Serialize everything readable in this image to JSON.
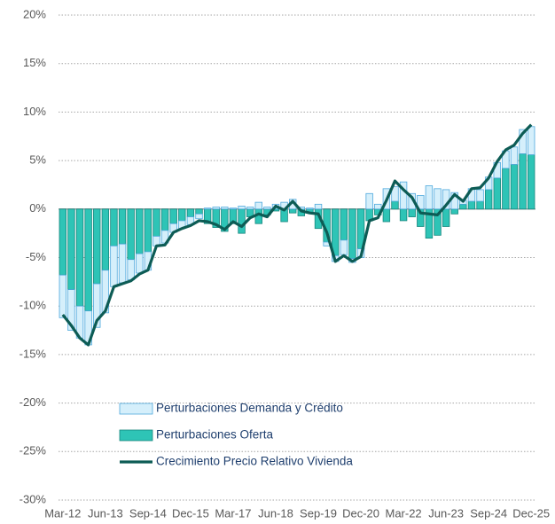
{
  "chart_data": {
    "type": "stacked-bar-line",
    "categories": [
      "Mar-12",
      null,
      null,
      null,
      null,
      "Jun-13",
      null,
      null,
      null,
      null,
      "Sep-14",
      null,
      null,
      null,
      null,
      "Dec-15",
      null,
      null,
      null,
      null,
      "Mar-17",
      null,
      null,
      null,
      null,
      "Jun-18",
      null,
      null,
      null,
      null,
      "Sep-19",
      null,
      null,
      null,
      null,
      "Dec-20",
      null,
      null,
      null,
      null,
      "Mar-22",
      null,
      null,
      null,
      null,
      "Jun-23",
      null,
      null,
      null,
      null,
      "Sep-24",
      null,
      null,
      null,
      null,
      "Dec-25"
    ],
    "series": [
      {
        "name": "Perturbaciones Demanda y Crédito",
        "color": "#d5effb",
        "edge": "#4fa9dd",
        "values": [
          -4.4,
          -4.2,
          -3.3,
          -3.5,
          -4.5,
          -4.4,
          -4.2,
          -4.0,
          -2.1,
          -2.0,
          -1.9,
          -1.0,
          -1.3,
          -0.9,
          -0.8,
          -0.8,
          -0.5,
          0.1,
          0.2,
          0.2,
          0.1,
          0.3,
          0.2,
          0.7,
          0.2,
          0.5,
          0.7,
          1.0,
          0.2,
          0.1,
          0.5,
          -0.4,
          -0.6,
          -1.5,
          -0.4,
          -0.9,
          1.6,
          0.5,
          2.1,
          1.5,
          2.8,
          1.6,
          1.4,
          2.4,
          2.1,
          2.0,
          1.7,
          0.4,
          1.3,
          1.2,
          1.3,
          1.6,
          1.8,
          1.8,
          2.5,
          2.9
        ]
      },
      {
        "name": "Perturbaciones Oferta",
        "color": "#2ec4b6",
        "edge": "#17867d",
        "values": [
          -6.8,
          -8.3,
          -10.0,
          -10.5,
          -7.7,
          -6.3,
          -3.8,
          -3.6,
          -5.2,
          -4.6,
          -4.4,
          -2.8,
          -2.2,
          -1.5,
          -1.2,
          -0.8,
          -0.5,
          -1.5,
          -1.9,
          -2.3,
          -1.5,
          -2.5,
          -0.8,
          -1.5,
          -0.6,
          -0.2,
          -1.3,
          -0.4,
          -0.7,
          -0.4,
          -2.0,
          -3.4,
          -4.8,
          -3.2,
          -5.1,
          -4.1,
          -1.2,
          -0.6,
          -1.3,
          0.8,
          -1.2,
          -0.8,
          -1.8,
          -3.0,
          -2.7,
          -1.8,
          -0.5,
          0.5,
          0.8,
          0.8,
          2.0,
          3.2,
          4.2,
          4.6,
          5.7,
          5.6
        ]
      },
      {
        "name": "Crecimiento Precio Relativo Vivienda",
        "color": "#0d5c55",
        "kind": "line",
        "values": [
          -10.9,
          -12.0,
          -13.3,
          -14.0,
          -11.5,
          -10.5,
          -8.0,
          -7.7,
          -7.4,
          -6.7,
          -6.3,
          -3.8,
          -3.7,
          -2.4,
          -2.0,
          -1.7,
          -1.2,
          -1.3,
          -1.6,
          -2.1,
          -1.3,
          -1.8,
          -0.9,
          -0.5,
          -0.8,
          0.3,
          -0.1,
          0.8,
          -0.2,
          -0.4,
          -0.5,
          -2.4,
          -5.4,
          -4.8,
          -5.4,
          -4.9,
          -1.2,
          -0.9,
          0.9,
          2.9,
          2.0,
          1.2,
          -0.4,
          -0.5,
          -0.6,
          0.4,
          1.5,
          0.8,
          2.1,
          2.2,
          3.2,
          4.9,
          6.1,
          6.6,
          7.8,
          8.7
        ]
      }
    ],
    "ylim": [
      -30,
      20
    ],
    "yticks": [
      {
        "value": -30,
        "label": "-30%"
      },
      {
        "value": -25,
        "label": "-25%"
      },
      {
        "value": -20,
        "label": "-20%"
      },
      {
        "value": -15,
        "label": "-15%"
      },
      {
        "value": -10,
        "label": "-10%"
      },
      {
        "value": -5,
        "label": "-5%"
      },
      {
        "value": 0,
        "label": "0%"
      },
      {
        "value": 5,
        "label": "5%"
      },
      {
        "value": 10,
        "label": "10%"
      },
      {
        "value": 15,
        "label": "15%"
      },
      {
        "value": 20,
        "label": "20%"
      }
    ],
    "grid": true
  }
}
